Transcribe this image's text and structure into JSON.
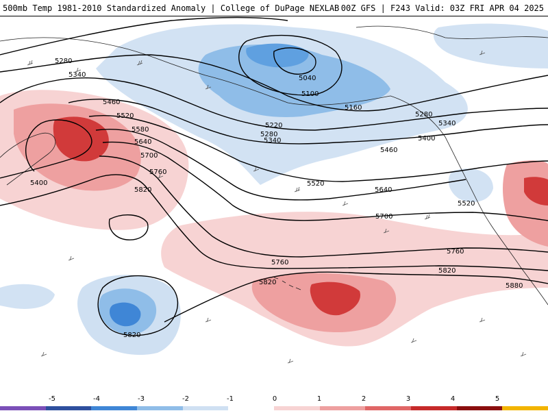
{
  "header": {
    "left": "500mb Temp 1981-2010 Standardized Anomaly | College of DuPage NEXLAB",
    "right": "00Z GFS | F243 Valid: 03Z FRI APR 04 2025"
  },
  "colorbar": {
    "ticks": [
      "-5",
      "-4",
      "-3",
      "-2",
      "-1",
      "0",
      "1",
      "2",
      "3",
      "4",
      "5"
    ],
    "colors": [
      "#7b4fb8",
      "#2e4f9e",
      "#3f86d6",
      "#8fbde8",
      "#cfe0f2",
      "#ffffff",
      "#f7d3d3",
      "#eea0a0",
      "#e06666",
      "#c62a2a",
      "#8a0e0e",
      "#f2b400"
    ]
  },
  "contours": {
    "labels": [
      "5280",
      "5340",
      "5460",
      "5520",
      "5580",
      "5640",
      "5700",
      "5760",
      "5820",
      "5400",
      "5040",
      "5100",
      "5160",
      "5220",
      "5280",
      "5340",
      "5280",
      "5340",
      "5400",
      "5460",
      "5520",
      "5640",
      "5700",
      "5760",
      "5820",
      "5520",
      "5760",
      "5820",
      "5880",
      "5820"
    ]
  }
}
